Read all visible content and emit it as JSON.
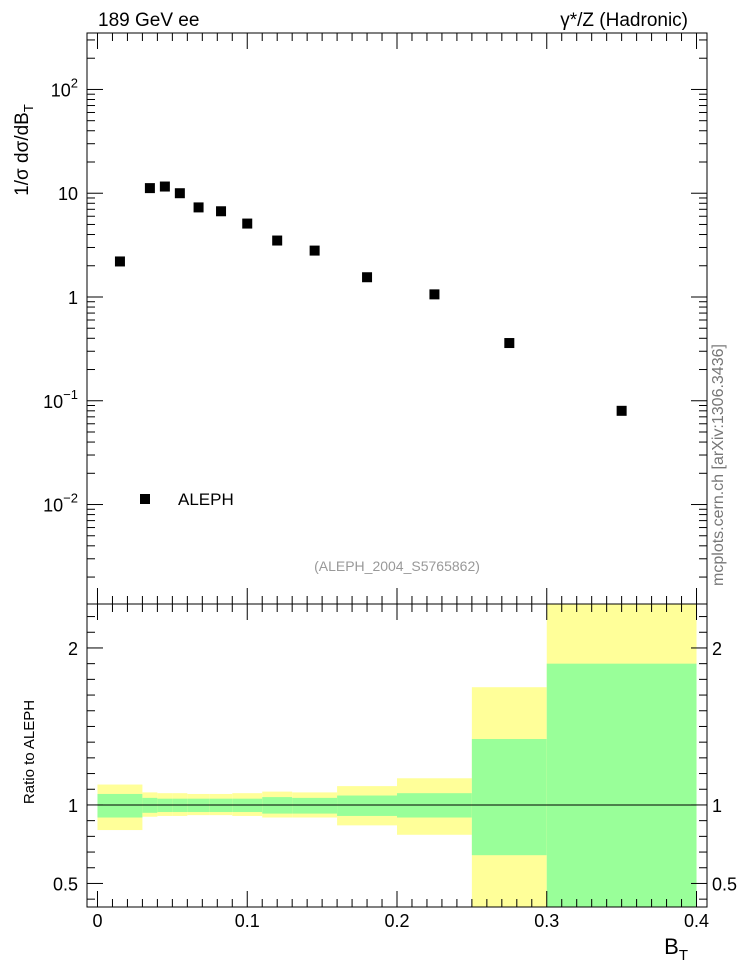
{
  "header": {
    "left": "189 GeV ee",
    "right": "γ*/Z (Hadronic)"
  },
  "side_label": "mcplots.cern.ch [arXiv:1306.3436]",
  "watermark": "(ALEPH_2004_S5765862)",
  "colors": {
    "band_inner": "#99ff99",
    "band_outer": "#ffff99",
    "marker": "#000000"
  },
  "chart_data": [
    {
      "type": "scatter",
      "ylabel": "1/σ  dσ/dB",
      "ylabel_sub": "T",
      "yscale": "log",
      "ylim": [
        0.0011,
        350
      ],
      "xlim": [
        -0.007,
        0.407
      ],
      "y_ticks": [
        {
          "value": 0.01,
          "base": "10",
          "exp": "−2"
        },
        {
          "value": 0.1,
          "base": "10",
          "exp": "−1"
        },
        {
          "value": 1,
          "base": "1",
          "exp": ""
        },
        {
          "value": 10,
          "base": "10",
          "exp": ""
        },
        {
          "value": 100,
          "base": "10",
          "exp": "2"
        }
      ],
      "legend": {
        "entry": "ALEPH",
        "position": "bottom-left"
      },
      "series": [
        {
          "name": "ALEPH",
          "x": [
            0.015,
            0.035,
            0.045,
            0.055,
            0.0675,
            0.0825,
            0.1,
            0.12,
            0.145,
            0.18,
            0.225,
            0.275,
            0.35
          ],
          "y": [
            2.2,
            11.2,
            11.6,
            10.0,
            7.3,
            6.7,
            5.1,
            3.5,
            2.8,
            1.55,
            1.06,
            0.36,
            0.08
          ]
        }
      ]
    },
    {
      "type": "area",
      "ylabel": "Ratio to ALEPH",
      "xlabel": "B",
      "xlabel_sub": "T",
      "ylim": [
        0.35,
        2.28
      ],
      "xlim": [
        -0.007,
        0.407
      ],
      "x_ticks": [
        "0",
        "0.1",
        "0.2",
        "0.3",
        "0.4"
      ],
      "y_ticks": [
        "0.5",
        "1",
        "2"
      ],
      "reference_line": 1,
      "bins": [
        {
          "lo": 0.0,
          "hi": 0.03,
          "inner": [
            0.92,
            1.07
          ],
          "outer": [
            0.84,
            1.13
          ]
        },
        {
          "lo": 0.03,
          "hi": 0.04,
          "inner": [
            0.95,
            1.045
          ],
          "outer": [
            0.925,
            1.08
          ]
        },
        {
          "lo": 0.04,
          "hi": 0.05,
          "inner": [
            0.955,
            1.04
          ],
          "outer": [
            0.93,
            1.075
          ]
        },
        {
          "lo": 0.05,
          "hi": 0.06,
          "inner": [
            0.955,
            1.04
          ],
          "outer": [
            0.93,
            1.075
          ]
        },
        {
          "lo": 0.06,
          "hi": 0.075,
          "inner": [
            0.955,
            1.04
          ],
          "outer": [
            0.935,
            1.07
          ]
        },
        {
          "lo": 0.075,
          "hi": 0.09,
          "inner": [
            0.955,
            1.04
          ],
          "outer": [
            0.935,
            1.07
          ]
        },
        {
          "lo": 0.09,
          "hi": 0.11,
          "inner": [
            0.955,
            1.04
          ],
          "outer": [
            0.93,
            1.075
          ]
        },
        {
          "lo": 0.11,
          "hi": 0.13,
          "inner": [
            0.945,
            1.05
          ],
          "outer": [
            0.92,
            1.085
          ]
        },
        {
          "lo": 0.13,
          "hi": 0.16,
          "inner": [
            0.945,
            1.045
          ],
          "outer": [
            0.92,
            1.08
          ]
        },
        {
          "lo": 0.16,
          "hi": 0.2,
          "inner": [
            0.93,
            1.06
          ],
          "outer": [
            0.87,
            1.12
          ]
        },
        {
          "lo": 0.2,
          "hi": 0.25,
          "inner": [
            0.92,
            1.075
          ],
          "outer": [
            0.81,
            1.17
          ]
        },
        {
          "lo": 0.25,
          "hi": 0.3,
          "inner": [
            0.68,
            1.42
          ],
          "outer": [
            0.35,
            1.75
          ]
        },
        {
          "lo": 0.3,
          "hi": 0.4,
          "inner": [
            0.35,
            1.9
          ],
          "outer": [
            0.35,
            2.28
          ]
        }
      ]
    }
  ]
}
